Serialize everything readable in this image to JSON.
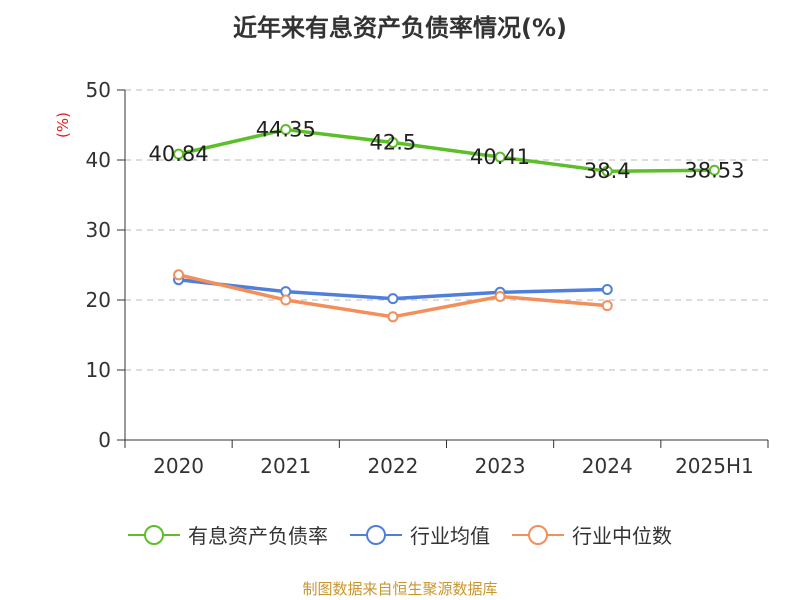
{
  "title": "近年来有息资产负债率情况(%)",
  "source": "制图数据来自恒生聚源数据库",
  "chart_data": {
    "type": "line",
    "title": "近年来有息资产负债率情况(%)",
    "ylabel": "(%)",
    "ylim": [
      0,
      50
    ],
    "yticks": [
      0,
      10,
      20,
      30,
      40,
      50
    ],
    "grid": true,
    "legend_position": "bottom",
    "categories": [
      "2020",
      "2021",
      "2022",
      "2023",
      "2024",
      "2025H1"
    ],
    "series": [
      {
        "name": "有息资产负债率",
        "color": "#5cbf2a",
        "values": [
          40.84,
          44.35,
          42.5,
          40.41,
          38.4,
          38.53
        ],
        "data_labels": [
          "40.84",
          "44.35",
          "42.5",
          "40.41",
          "38.4",
          "38.53"
        ]
      },
      {
        "name": "行业均值",
        "color": "#4f7fdb",
        "values": [
          22.9,
          21.2,
          20.2,
          21.1,
          21.5,
          null
        ]
      },
      {
        "name": "行业中位数",
        "color": "#f28f5a",
        "values": [
          23.6,
          20.0,
          17.6,
          20.5,
          19.2,
          null
        ]
      }
    ]
  }
}
